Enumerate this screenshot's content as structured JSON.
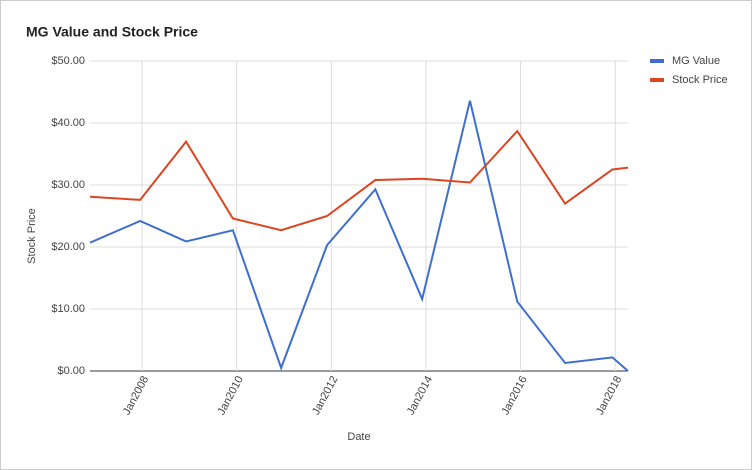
{
  "chart_data": {
    "type": "line",
    "title": "MG Value and Stock Price",
    "x_label": "Date",
    "y_label": "Stock Price",
    "x": [
      2006.9,
      2007.96,
      2008.93,
      2009.92,
      2010.94,
      2011.91,
      2012.93,
      2013.92,
      2014.93,
      2015.93,
      2016.94,
      2017.94,
      2018.27
    ],
    "series": [
      {
        "name": "MG Value",
        "color": "#3f6fce",
        "values": [
          20.7,
          24.2,
          20.9,
          22.7,
          0.5,
          20.3,
          29.3,
          11.6,
          43.6,
          11.2,
          1.3,
          2.2,
          0
        ]
      },
      {
        "name": "Stock Price",
        "color": "#dc4520",
        "values": [
          28.1,
          27.6,
          37.0,
          24.6,
          22.7,
          25.0,
          30.8,
          31.0,
          30.4,
          38.7,
          27.0,
          32.5,
          32.8
        ]
      }
    ],
    "xlim": [
      2006.9,
      2018.27
    ],
    "xticks": [
      {
        "value": 2008,
        "label": "Jan2008"
      },
      {
        "value": 2010,
        "label": "Jan2010"
      },
      {
        "value": 2012,
        "label": "Jan2012"
      },
      {
        "value": 2014,
        "label": "Jan2014"
      },
      {
        "value": 2016,
        "label": "Jan2016"
      },
      {
        "value": 2018,
        "label": "Jan2018"
      }
    ],
    "ylim": [
      0,
      50
    ],
    "yticks": [
      {
        "value": 0,
        "label": "$0.00"
      },
      {
        "value": 10,
        "label": "$10.00"
      },
      {
        "value": 20,
        "label": "$20.00"
      },
      {
        "value": 30,
        "label": "$30.00"
      },
      {
        "value": 40,
        "label": "$40.00"
      },
      {
        "value": 50,
        "label": "$50.00"
      }
    ],
    "grid": true,
    "legend": "right"
  }
}
